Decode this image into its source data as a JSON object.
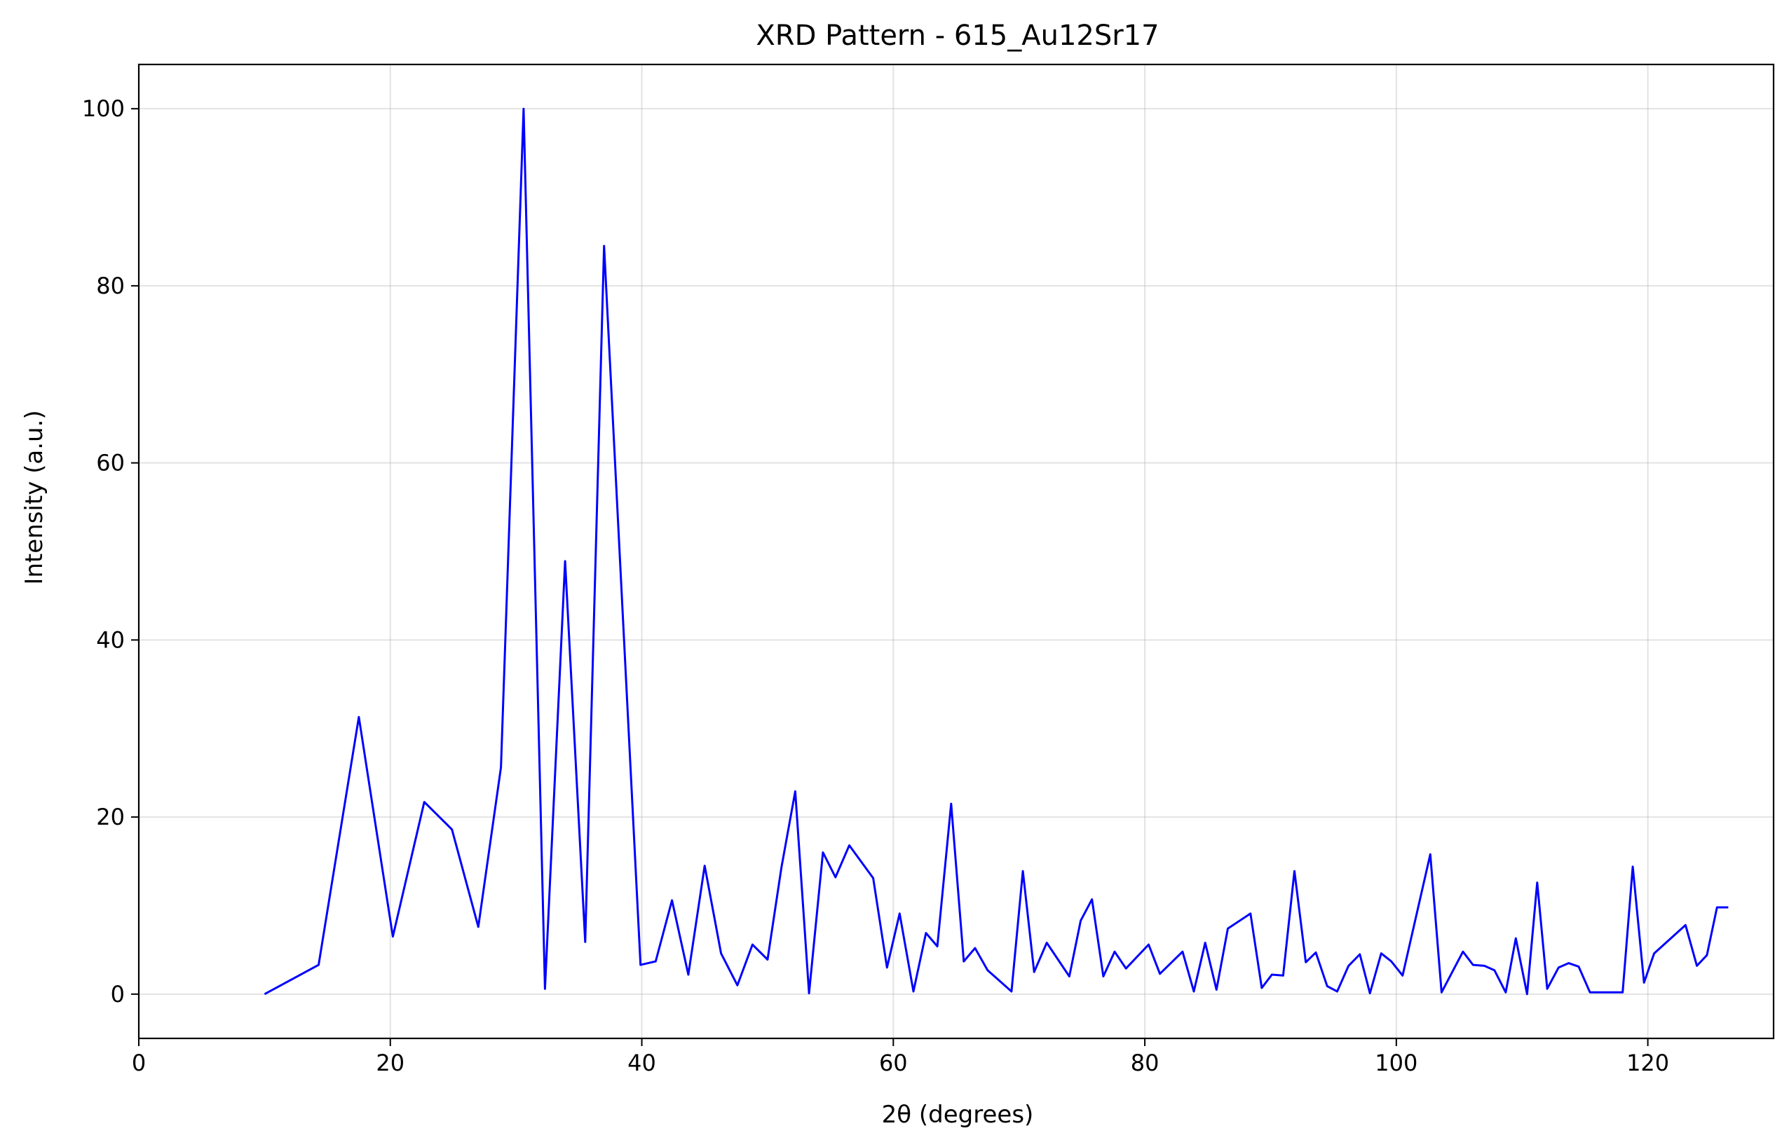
{
  "chart_data": {
    "type": "line",
    "title": "XRD Pattern - 615_Au12Sr17",
    "xlabel": "2θ (degrees)",
    "ylabel": "Intensity (a.u.)",
    "xlim": [
      0,
      130
    ],
    "ylim": [
      -5,
      105
    ],
    "xticks": [
      0,
      20,
      40,
      60,
      80,
      100,
      120
    ],
    "yticks": [
      0,
      20,
      40,
      60,
      80,
      100
    ],
    "grid": true,
    "line_color": "#0000ff",
    "series": [
      {
        "x": [
          10.0,
          14.3,
          17.5,
          20.2,
          22.7,
          24.9,
          27.0,
          28.8,
          30.6,
          32.3,
          33.9,
          35.5,
          37.0,
          39.9,
          41.1,
          42.4,
          43.7,
          45.0,
          46.3,
          47.6,
          48.8,
          50.0,
          51.1,
          52.2,
          53.3,
          54.4,
          55.4,
          56.5,
          58.4,
          59.5,
          60.5,
          61.6,
          62.6,
          63.5,
          64.6,
          65.6,
          66.5,
          67.5,
          69.4,
          70.3,
          71.2,
          72.2,
          74.0,
          74.9,
          75.8,
          76.7,
          77.6,
          78.5,
          80.3,
          81.2,
          83.0,
          83.9,
          84.8,
          85.7,
          86.6,
          88.4,
          89.3,
          90.1,
          91.0,
          91.9,
          92.8,
          93.6,
          94.5,
          95.3,
          96.2,
          97.1,
          97.9,
          98.8,
          99.6,
          100.5,
          102.7,
          103.6,
          105.3,
          106.1,
          107.0,
          107.8,
          108.7,
          109.5,
          110.4,
          111.2,
          112.0,
          112.9,
          113.7,
          114.5,
          115.4,
          118.0,
          118.8,
          119.7,
          120.5,
          123.0,
          123.9,
          124.7,
          125.5,
          126.4
        ],
        "y": [
          0,
          3.3,
          31.3,
          6.5,
          21.7,
          18.6,
          7.6,
          25.6,
          100,
          0.6,
          48.9,
          5.9,
          84.5,
          3.3,
          3.7,
          10.6,
          2.2,
          14.5,
          4.6,
          1.0,
          5.6,
          3.9,
          14.3,
          22.9,
          0.1,
          16.0,
          13.2,
          16.8,
          13.1,
          3.0,
          9.1,
          0.3,
          6.9,
          5.4,
          21.5,
          3.7,
          5.2,
          2.7,
          0.3,
          13.9,
          2.5,
          5.8,
          2.0,
          8.3,
          10.7,
          2.0,
          4.8,
          2.9,
          5.6,
          2.3,
          4.8,
          0.3,
          5.8,
          0.5,
          7.4,
          9.1,
          0.7,
          2.2,
          2.1,
          13.9,
          3.6,
          4.7,
          0.9,
          0.3,
          3.2,
          4.5,
          0.1,
          4.6,
          3.7,
          2.1,
          15.8,
          0.2,
          4.8,
          3.3,
          3.2,
          2.7,
          0.2,
          6.3,
          0.0,
          12.6,
          0.6,
          3.0,
          3.5,
          3.1,
          0.2,
          0.2,
          14.4,
          1.3,
          4.6,
          7.8,
          3.2,
          4.4,
          9.8,
          9.8
        ]
      }
    ]
  }
}
